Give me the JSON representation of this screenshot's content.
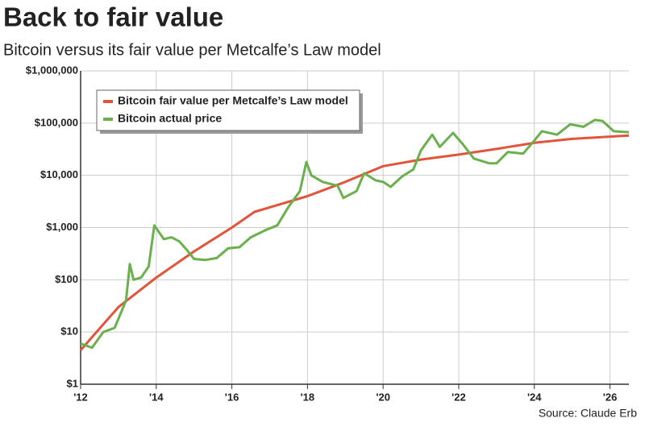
{
  "chart_data": {
    "type": "line",
    "title": "Back to fair value",
    "subtitle": "Bitcoin versus its fair value per Metcalfe’s Law model",
    "source": "Source: Claude Erb",
    "log_y": true,
    "grid": true,
    "legend": "upper left",
    "xlim": [
      2012,
      2026.5
    ],
    "ylim": [
      1,
      1000000
    ],
    "xticks": [
      {
        "value": 2012,
        "label": "'12"
      },
      {
        "value": 2014,
        "label": "'14"
      },
      {
        "value": 2016,
        "label": "'16"
      },
      {
        "value": 2018,
        "label": "'18"
      },
      {
        "value": 2020,
        "label": "'20"
      },
      {
        "value": 2022,
        "label": "'22"
      },
      {
        "value": 2024,
        "label": "'24"
      },
      {
        "value": 2026,
        "label": "'26"
      }
    ],
    "yticks": [
      {
        "value": 1,
        "label": "$1"
      },
      {
        "value": 10,
        "label": "$10"
      },
      {
        "value": 100,
        "label": "$100"
      },
      {
        "value": 1000,
        "label": "$1,000"
      },
      {
        "value": 10000,
        "label": "$10,000"
      },
      {
        "value": 100000,
        "label": "$100,000"
      },
      {
        "value": 1000000,
        "label": "$1,000,000"
      }
    ],
    "series": [
      {
        "name": "Bitcoin fair value per Metcalfe’s Law model",
        "color": "#e2553a",
        "x": [
          2012,
          2013,
          2014,
          2015,
          2016,
          2016.6,
          2018,
          2019,
          2020,
          2021,
          2022,
          2023,
          2024,
          2025,
          2026.5
        ],
        "values": [
          4.5,
          30,
          110,
          350,
          1000,
          2000,
          4000,
          7500,
          15000,
          20000,
          25000,
          32000,
          42000,
          50000,
          58000
        ]
      },
      {
        "name": "Bitcoin actual price",
        "color": "#6ab04c",
        "x": [
          2012,
          2012.3,
          2012.6,
          2012.9,
          2013.2,
          2013.3,
          2013.4,
          2013.6,
          2013.8,
          2013.95,
          2014.2,
          2014.4,
          2014.6,
          2014.8,
          2015,
          2015.3,
          2015.6,
          2015.9,
          2016.2,
          2016.5,
          2016.9,
          2017.2,
          2017.5,
          2017.8,
          2017.97,
          2018.1,
          2018.4,
          2018.8,
          2018.95,
          2019.3,
          2019.5,
          2019.8,
          2020,
          2020.2,
          2020.5,
          2020.8,
          2021,
          2021.3,
          2021.5,
          2021.85,
          2022.1,
          2022.4,
          2022.8,
          2023,
          2023.3,
          2023.7,
          2023.95,
          2024.2,
          2024.6,
          2024.95,
          2025.3,
          2025.6,
          2025.8,
          2026.1,
          2026.5
        ],
        "values": [
          6,
          5,
          10,
          12,
          40,
          200,
          100,
          110,
          180,
          1100,
          600,
          650,
          550,
          380,
          250,
          240,
          260,
          400,
          420,
          650,
          900,
          1100,
          2500,
          5000,
          18000,
          10000,
          7500,
          6300,
          3700,
          5000,
          11000,
          8000,
          7500,
          6000,
          9500,
          13000,
          30000,
          60000,
          35000,
          65000,
          40000,
          21000,
          17000,
          17000,
          28000,
          26000,
          42000,
          70000,
          60000,
          95000,
          85000,
          115000,
          110000,
          70000,
          67000
        ]
      }
    ]
  }
}
